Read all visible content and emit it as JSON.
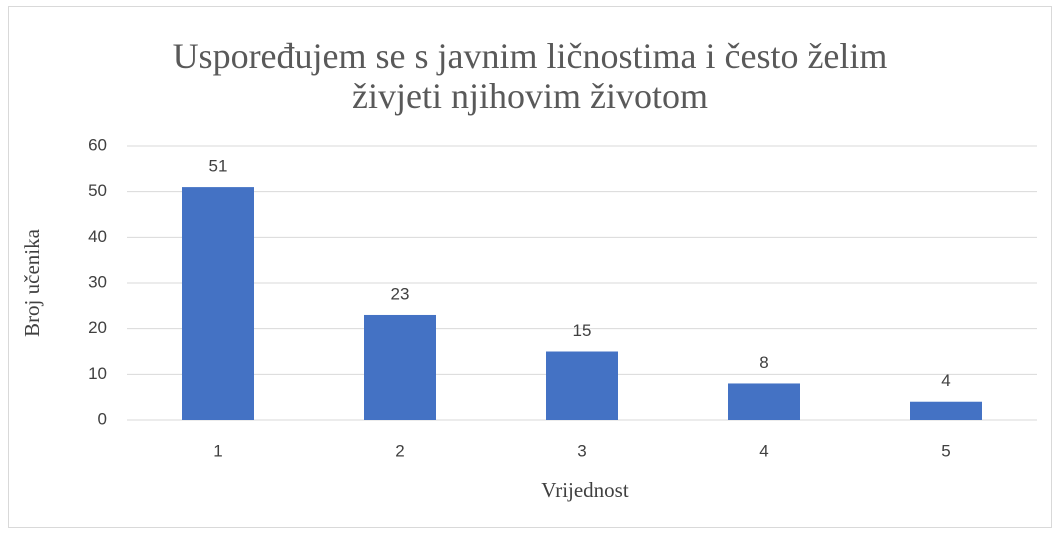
{
  "chart_data": {
    "type": "bar",
    "title": "Uspoređujem se s javnim ličnostima i često želim živjeti njihovim životom",
    "x_label": "Vrijednost",
    "y_label": "Broj učenika",
    "categories": [
      "1",
      "2",
      "3",
      "4",
      "5"
    ],
    "values": [
      51,
      23,
      15,
      8,
      4
    ],
    "color": "#4472c4",
    "ylim": [
      0,
      60
    ],
    "yticks": [
      0,
      10,
      20,
      30,
      40,
      50,
      60
    ],
    "grid": true
  }
}
